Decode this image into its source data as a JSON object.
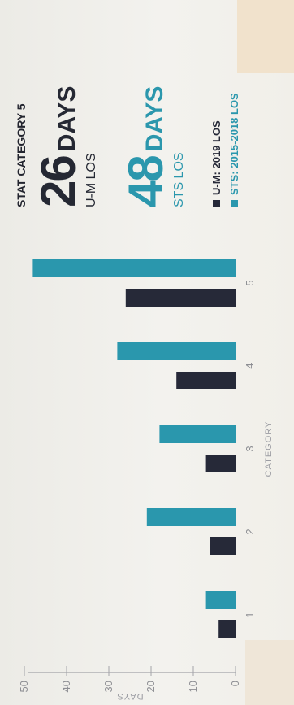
{
  "colors": {
    "um": "#262938",
    "sts": "#2a97ad",
    "axis": "#a3a4a9",
    "grid": "#d6d6d3"
  },
  "stat": {
    "category_label": "STAT CATEGORY 5",
    "um_value": "26",
    "um_unit": "DAYS",
    "um_sub": "U-M LOS",
    "sts_value": "48",
    "sts_unit": "DAYS",
    "sts_sub": "STS LOS"
  },
  "legend": [
    {
      "label": "U-M: 2019 LOS",
      "color": "#262938"
    },
    {
      "label": "STS: 2015-2018 LOS",
      "color": "#2a97ad"
    }
  ],
  "chart_data": {
    "type": "bar",
    "title": "",
    "xlabel": "CATEGORY",
    "ylabel": "DAYS",
    "categories": [
      "1",
      "2",
      "3",
      "4",
      "5"
    ],
    "ylim": [
      0,
      50
    ],
    "yticks": [
      0,
      10,
      20,
      30,
      40,
      50
    ],
    "grid": false,
    "series": [
      {
        "name": "U-M: 2019 LOS",
        "values": [
          4,
          6,
          7,
          14,
          26
        ],
        "color": "#262938"
      },
      {
        "name": "STS: 2015-2018 LOS",
        "values": [
          7,
          21,
          18,
          28,
          48
        ],
        "color": "#2a97ad"
      }
    ]
  }
}
